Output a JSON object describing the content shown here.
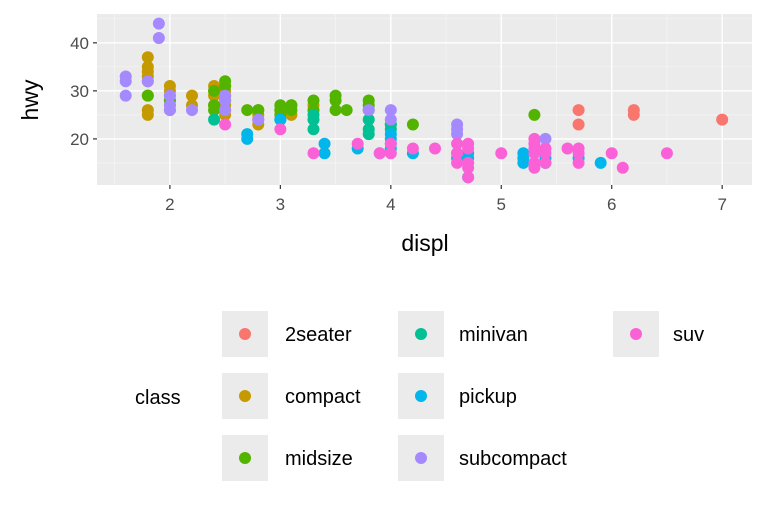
{
  "chart_data": {
    "type": "scatter",
    "xlabel": "displ",
    "ylabel": "hwy",
    "xlim": [
      1.34,
      7.27
    ],
    "ylim": [
      10.4,
      46.0
    ],
    "xticks": [
      "2",
      "3",
      "4",
      "5",
      "6",
      "7"
    ],
    "yticks": [
      "20",
      "30",
      "40"
    ],
    "grid": true,
    "legend": {
      "title": "class",
      "placement": "bottom"
    },
    "series": [
      {
        "name": "2seater",
        "color": "#F8766D",
        "points": [
          [
            5.7,
            26
          ],
          [
            5.7,
            23
          ],
          [
            6.2,
            26
          ],
          [
            6.2,
            25
          ],
          [
            7.0,
            24
          ]
        ]
      },
      {
        "name": "compact",
        "color": "#C49A00",
        "points": [
          [
            1.8,
            29
          ],
          [
            2.0,
            31
          ],
          [
            2.0,
            30
          ],
          [
            2.8,
            26
          ],
          [
            2.8,
            25
          ],
          [
            3.1,
            27
          ],
          [
            1.8,
            26
          ],
          [
            1.8,
            25
          ],
          [
            2.0,
            28
          ],
          [
            3.1,
            25
          ],
          [
            2.2,
            27
          ],
          [
            2.2,
            29
          ],
          [
            2.4,
            31
          ],
          [
            2.4,
            30
          ],
          [
            3.0,
            26
          ],
          [
            3.3,
            27
          ],
          [
            2.5,
            25
          ],
          [
            2.5,
            27
          ],
          [
            2.5,
            26
          ],
          [
            1.8,
            33
          ],
          [
            1.8,
            35
          ],
          [
            1.8,
            37
          ],
          [
            1.8,
            34
          ],
          [
            1.8,
            32
          ],
          [
            2.0,
            29
          ],
          [
            2.4,
            27
          ],
          [
            2.5,
            29
          ],
          [
            2.0,
            26
          ],
          [
            2.8,
            24
          ],
          [
            2.4,
            29
          ],
          [
            2.5,
            30
          ],
          [
            2.8,
            23
          ]
        ]
      },
      {
        "name": "midsize",
        "color": "#53B400",
        "points": [
          [
            2.4,
            30
          ],
          [
            3.5,
            28
          ],
          [
            3.0,
            26
          ],
          [
            3.8,
            26
          ],
          [
            2.4,
            27
          ],
          [
            2.7,
            26
          ],
          [
            2.5,
            32
          ],
          [
            2.5,
            31
          ],
          [
            3.5,
            26
          ],
          [
            4.0,
            23
          ],
          [
            2.8,
            26
          ],
          [
            3.1,
            27
          ],
          [
            5.3,
            25
          ],
          [
            1.8,
            29
          ],
          [
            2.0,
            28
          ],
          [
            3.3,
            26
          ],
          [
            3.6,
            26
          ],
          [
            4.2,
            23
          ],
          [
            2.4,
            26
          ],
          [
            3.8,
            28
          ],
          [
            3.8,
            27
          ],
          [
            3.5,
            29
          ],
          [
            3.0,
            27
          ],
          [
            3.3,
            28
          ],
          [
            2.0,
            27
          ],
          [
            3.1,
            26
          ],
          [
            3.0,
            25
          ],
          [
            2.5,
            28
          ]
        ]
      },
      {
        "name": "minivan",
        "color": "#00C094",
        "points": [
          [
            2.4,
            24
          ],
          [
            3.0,
            24
          ],
          [
            3.3,
            22
          ],
          [
            3.3,
            24
          ],
          [
            3.8,
            22
          ],
          [
            3.8,
            21
          ],
          [
            4.0,
            23
          ],
          [
            3.8,
            24
          ],
          [
            4.0,
            22
          ],
          [
            3.3,
            25
          ]
        ]
      },
      {
        "name": "pickup",
        "color": "#00B6EB",
        "points": [
          [
            2.7,
            20
          ],
          [
            2.7,
            21
          ],
          [
            3.4,
            17
          ],
          [
            3.4,
            19
          ],
          [
            3.9,
            17
          ],
          [
            3.7,
            18
          ],
          [
            4.7,
            17
          ],
          [
            4.7,
            12
          ],
          [
            5.2,
            17
          ],
          [
            5.7,
            16
          ],
          [
            5.9,
            15
          ],
          [
            4.0,
            20
          ],
          [
            4.6,
            16
          ],
          [
            5.4,
            15
          ],
          [
            5.2,
            16
          ],
          [
            4.7,
            16
          ],
          [
            4.0,
            18
          ],
          [
            4.2,
            17
          ],
          [
            5.2,
            15
          ],
          [
            4.0,
            19
          ],
          [
            4.6,
            17
          ],
          [
            5.4,
            16
          ],
          [
            3.0,
            24
          ],
          [
            4.0,
            21
          ]
        ]
      },
      {
        "name": "subcompact",
        "color": "#A58AFF",
        "points": [
          [
            1.6,
            33
          ],
          [
            1.6,
            32
          ],
          [
            1.6,
            29
          ],
          [
            1.8,
            32
          ],
          [
            1.9,
            44
          ],
          [
            1.9,
            41
          ],
          [
            2.0,
            26
          ],
          [
            2.5,
            26
          ],
          [
            2.5,
            28
          ],
          [
            3.8,
            26
          ],
          [
            4.0,
            26
          ],
          [
            4.6,
            23
          ],
          [
            4.6,
            22
          ],
          [
            5.4,
            20
          ],
          [
            2.2,
            26
          ],
          [
            2.5,
            29
          ],
          [
            4.6,
            21
          ],
          [
            2.0,
            29
          ],
          [
            2.0,
            27
          ],
          [
            2.8,
            24
          ],
          [
            4.0,
            24
          ]
        ]
      },
      {
        "name": "suv",
        "color": "#FB61D7",
        "points": [
          [
            5.3,
            20
          ],
          [
            5.3,
            15
          ],
          [
            5.3,
            19
          ],
          [
            5.7,
            17
          ],
          [
            6.0,
            17
          ],
          [
            6.5,
            17
          ],
          [
            3.7,
            19
          ],
          [
            4.7,
            19
          ],
          [
            4.7,
            18
          ],
          [
            4.7,
            15
          ],
          [
            5.7,
            15
          ],
          [
            6.1,
            14
          ],
          [
            4.0,
            17
          ],
          [
            4.6,
            17
          ],
          [
            5.4,
            18
          ],
          [
            5.7,
            18
          ],
          [
            4.2,
            18
          ],
          [
            4.4,
            18
          ],
          [
            4.0,
            19
          ],
          [
            5.0,
            17
          ],
          [
            5.6,
            18
          ],
          [
            4.7,
            12
          ],
          [
            5.3,
            14
          ],
          [
            5.4,
            17
          ],
          [
            3.0,
            22
          ],
          [
            3.9,
            17
          ],
          [
            2.5,
            23
          ],
          [
            3.3,
            17
          ],
          [
            4.6,
            19
          ],
          [
            4.7,
            14
          ],
          [
            5.3,
            17
          ],
          [
            5.4,
            15
          ],
          [
            4.6,
            15
          ],
          [
            5.3,
            18
          ]
        ]
      }
    ]
  }
}
